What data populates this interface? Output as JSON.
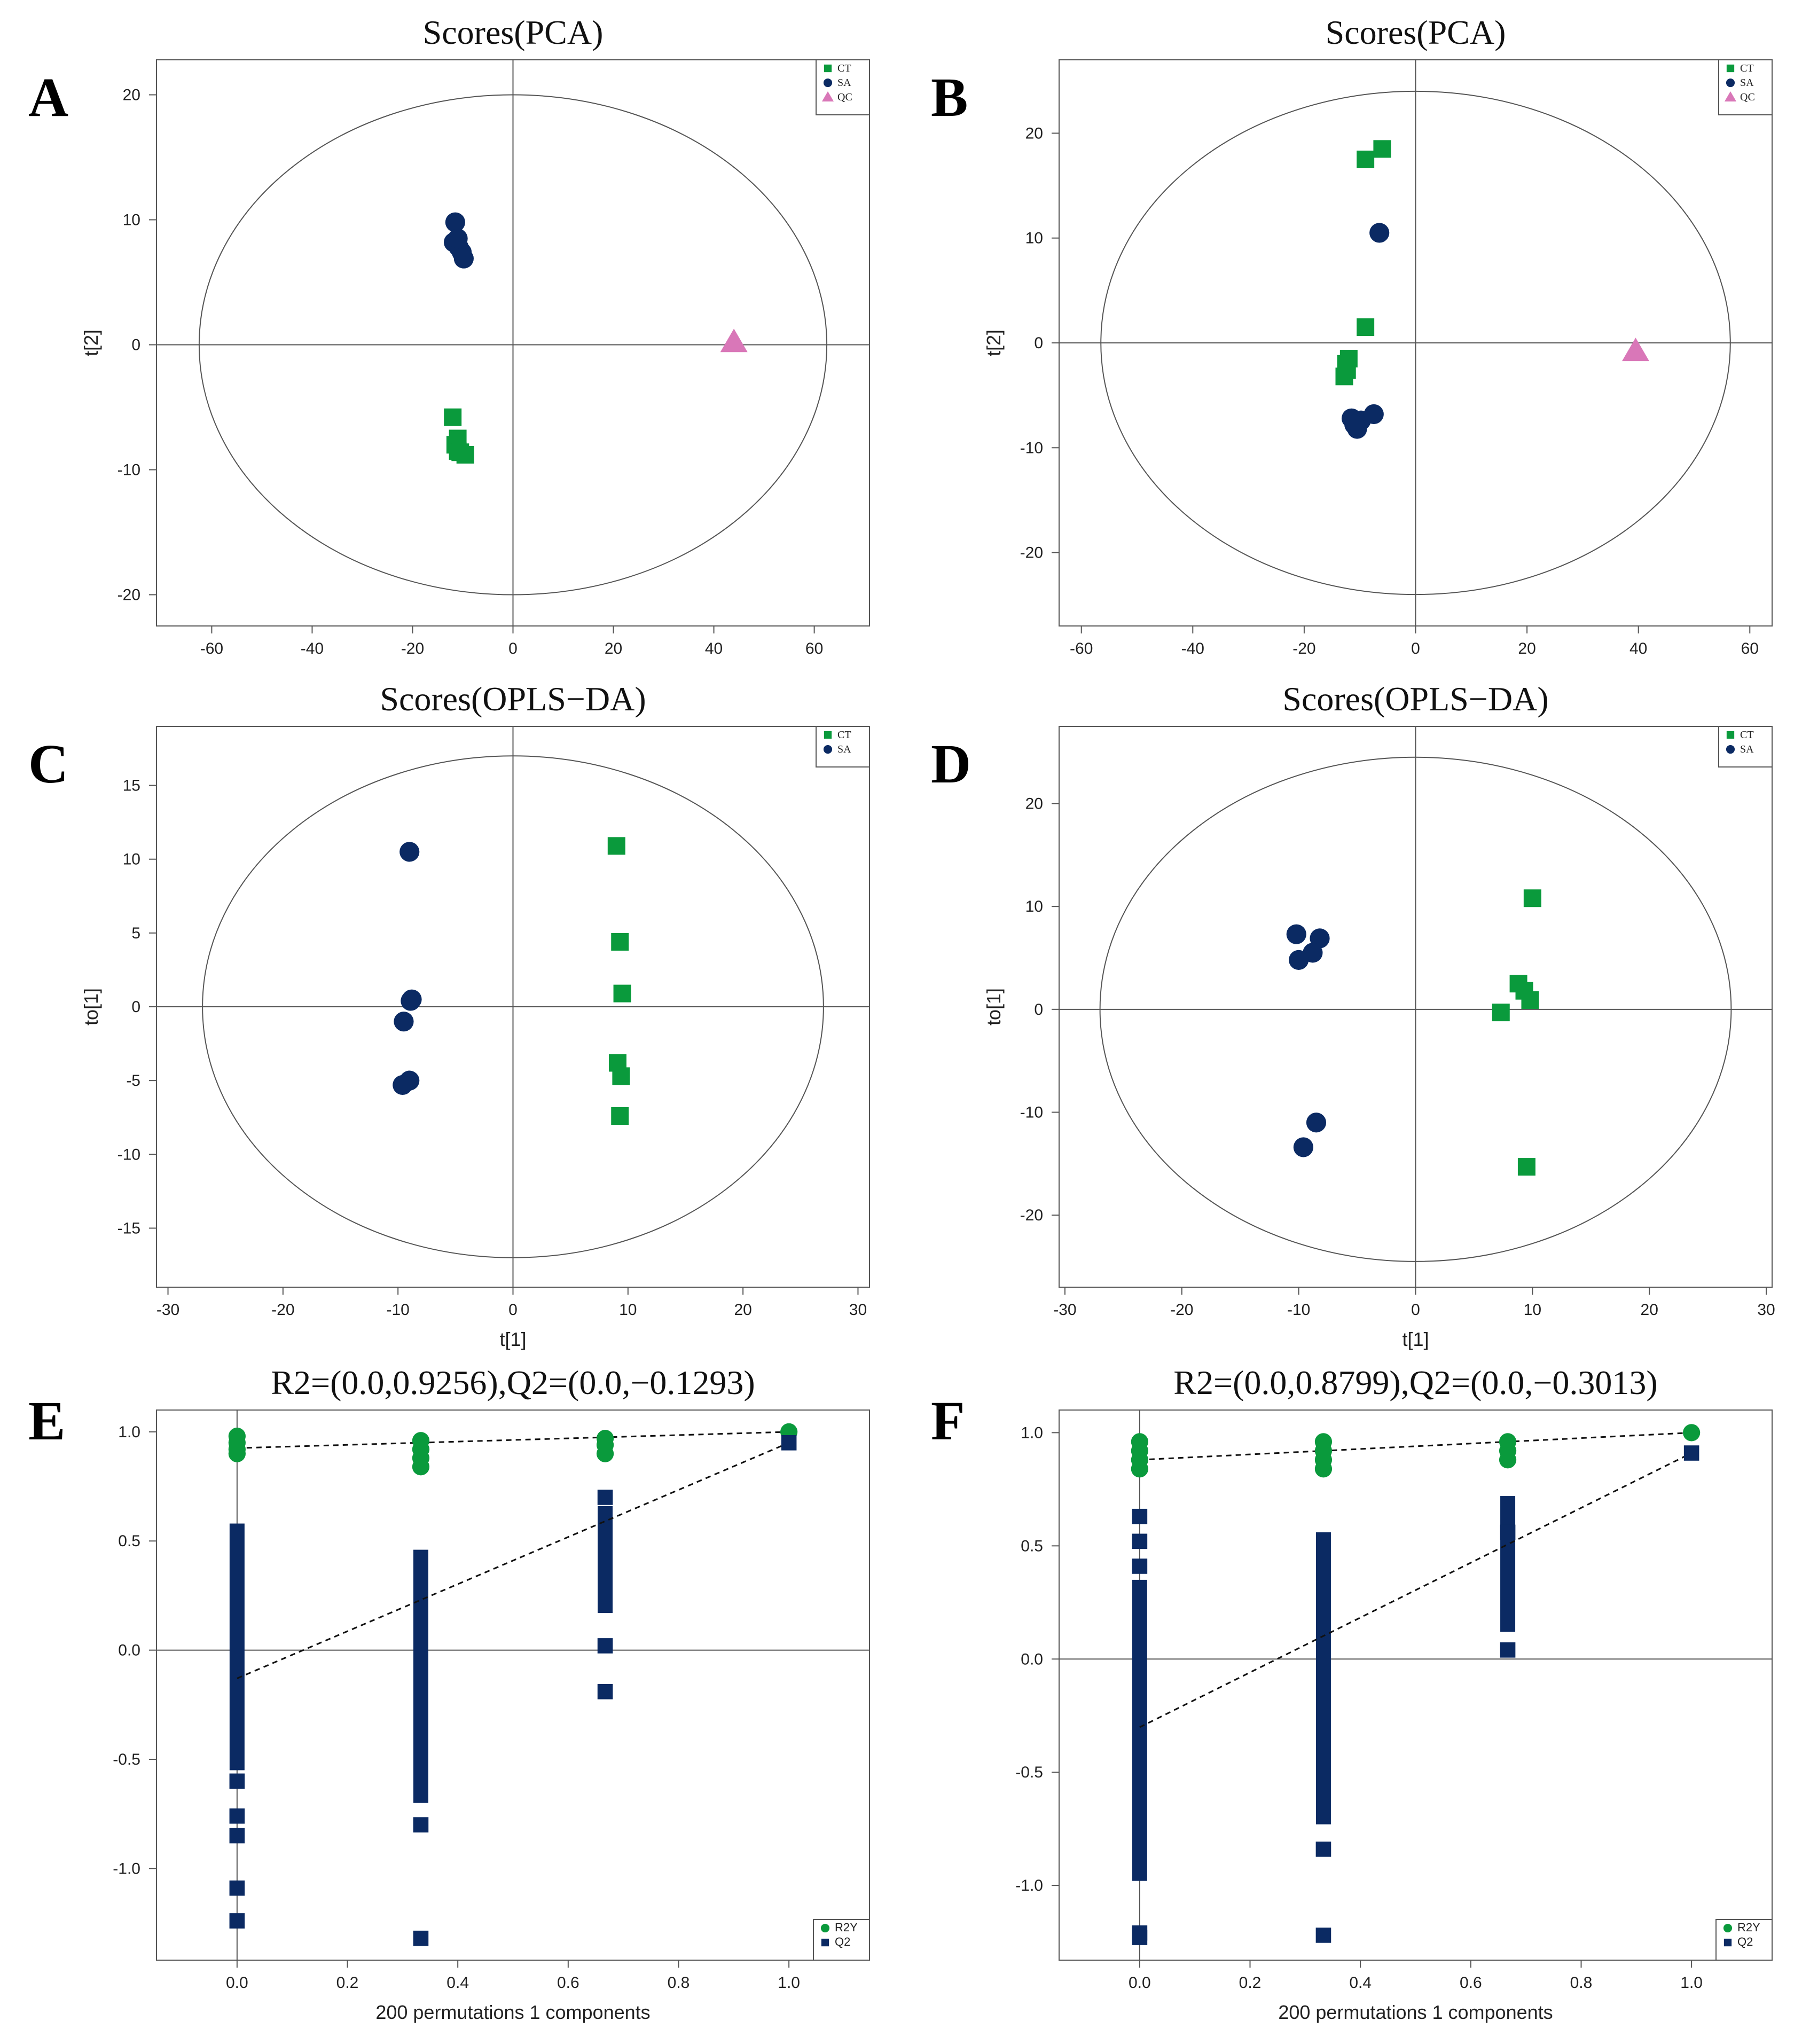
{
  "colors": {
    "CT": "#0a9a3c",
    "SA": "#0b2a63",
    "QC": "#d977b8",
    "R2Y": "#0a9a3c",
    "Q2": "#0b2a63"
  },
  "chart_data": [
    {
      "panel": "A",
      "type": "scatter",
      "title": "Scores(PCA)",
      "xlabel": "",
      "ylabel": "t[2]",
      "xlim": [
        -71,
        71
      ],
      "ylim": [
        -22.5,
        22.8
      ],
      "xticks": [
        -60,
        -40,
        -20,
        0,
        20,
        40,
        60
      ],
      "yticks": [
        -20,
        -10,
        0,
        10,
        20
      ],
      "ellipse": {
        "rx": 62.5,
        "ry": 20
      },
      "legend": "top-right",
      "series": [
        {
          "name": "CT",
          "marker": "square",
          "points": [
            [
              -12,
              -5.8
            ],
            [
              -11,
              -7.5
            ],
            [
              -11,
              -8.5
            ],
            [
              -9.5,
              -8.8
            ],
            [
              -11.5,
              -8
            ],
            [
              -10.5,
              -8.6
            ]
          ]
        },
        {
          "name": "SA",
          "marker": "circle",
          "points": [
            [
              -11.5,
              9.8
            ],
            [
              -11.8,
              8.2
            ],
            [
              -10.8,
              7.8
            ],
            [
              -10.2,
              7.4
            ],
            [
              -9.8,
              6.9
            ],
            [
              -11,
              8.5
            ]
          ]
        },
        {
          "name": "QC",
          "marker": "triangle",
          "points": [
            [
              44,
              0.2
            ]
          ]
        }
      ]
    },
    {
      "panel": "B",
      "type": "scatter",
      "title": "Scores(PCA)",
      "xlabel": "",
      "ylabel": "t[2]",
      "xlim": [
        -64,
        64
      ],
      "ylim": [
        -27,
        27
      ],
      "xticks": [
        -60,
        -40,
        -20,
        0,
        20,
        40,
        60
      ],
      "yticks": [
        -20,
        -10,
        0,
        10,
        20
      ],
      "ellipse": {
        "rx": 56.5,
        "ry": 24
      },
      "legend": "top-right",
      "series": [
        {
          "name": "CT",
          "marker": "square",
          "points": [
            [
              -6,
              18.5
            ],
            [
              -9,
              17.5
            ],
            [
              -9,
              1.5
            ],
            [
              -12.5,
              -2
            ],
            [
              -12,
              -1.5
            ],
            [
              -12.8,
              -3.2
            ],
            [
              -12.3,
              -2.6
            ]
          ]
        },
        {
          "name": "SA",
          "marker": "circle",
          "points": [
            [
              -6.5,
              10.5
            ],
            [
              -11.5,
              -7.2
            ],
            [
              -10.5,
              -8.2
            ],
            [
              -9.8,
              -7.4
            ],
            [
              -7.5,
              -6.8
            ],
            [
              -11,
              -7.8
            ]
          ]
        },
        {
          "name": "QC",
          "marker": "triangle",
          "points": [
            [
              39.5,
              -0.8
            ]
          ]
        }
      ]
    },
    {
      "panel": "C",
      "type": "scatter",
      "title": "Scores(OPLS−DA)",
      "xlabel": "t[1]",
      "ylabel": "to[1]",
      "xlim": [
        -31,
        31
      ],
      "ylim": [
        -19,
        19
      ],
      "xticks": [
        -30,
        -20,
        -10,
        0,
        10,
        20,
        30
      ],
      "yticks": [
        -15,
        -10,
        -5,
        0,
        5,
        10,
        15
      ],
      "ellipse": {
        "rx": 27,
        "ry": 17
      },
      "legend": "top-right",
      "series": [
        {
          "name": "CT",
          "marker": "square",
          "points": [
            [
              9,
              10.9
            ],
            [
              9.3,
              4.4
            ],
            [
              9.5,
              0.9
            ],
            [
              9.1,
              -3.8
            ],
            [
              9.4,
              -4.7
            ],
            [
              9.3,
              -7.4
            ]
          ]
        },
        {
          "name": "SA",
          "marker": "circle",
          "points": [
            [
              -9,
              10.5
            ],
            [
              -8.8,
              0.5
            ],
            [
              -9.5,
              -1
            ],
            [
              -9,
              -5
            ],
            [
              -9.6,
              -5.3
            ],
            [
              -8.9,
              0.4
            ]
          ]
        }
      ]
    },
    {
      "panel": "D",
      "type": "scatter",
      "title": "Scores(OPLS−DA)",
      "xlabel": "t[1]",
      "ylabel": "to[1]",
      "xlim": [
        -30.5,
        30.5
      ],
      "ylim": [
        -27,
        27.5
      ],
      "xticks": [
        -30,
        -20,
        -10,
        0,
        10,
        20,
        30
      ],
      "yticks": [
        -20,
        -10,
        0,
        10,
        20
      ],
      "ellipse": {
        "rx": 27,
        "ry": 24.5
      },
      "legend": "top-right",
      "series": [
        {
          "name": "CT",
          "marker": "square",
          "points": [
            [
              10,
              10.8
            ],
            [
              8.8,
              2.5
            ],
            [
              9.3,
              1.8
            ],
            [
              9.8,
              0.9
            ],
            [
              7.3,
              -0.3
            ],
            [
              9.5,
              -15.3
            ]
          ]
        },
        {
          "name": "SA",
          "marker": "circle",
          "points": [
            [
              -10.2,
              7.3
            ],
            [
              -8.2,
              6.9
            ],
            [
              -8.8,
              5.5
            ],
            [
              -10,
              4.8
            ],
            [
              -8.5,
              -11
            ],
            [
              -9.6,
              -13.4
            ]
          ]
        }
      ]
    },
    {
      "panel": "E",
      "type": "scatter",
      "title": "R2=(0.0,0.9256),Q2=(0.0,−0.1293)",
      "xlabel": "200 permutations 1 components",
      "ylabel": "",
      "xlim": [
        -0.146,
        1.146
      ],
      "ylim": [
        -1.42,
        1.1
      ],
      "xticks": [
        0.0,
        0.2,
        0.4,
        0.6,
        0.8,
        1.0
      ],
      "yticks": [
        -1.0,
        -0.5,
        0.0,
        0.5,
        1.0
      ],
      "legend": "bottom-right",
      "series": [
        {
          "name": "R2Y",
          "marker": "circle",
          "points": [
            [
              0,
              0.98
            ],
            [
              0,
              0.95
            ],
            [
              0,
              0.92
            ],
            [
              0,
              0.9
            ],
            [
              0.333,
              0.96
            ],
            [
              0.333,
              0.92
            ],
            [
              0.333,
              0.88
            ],
            [
              0.333,
              0.84
            ],
            [
              0.667,
              0.97
            ],
            [
              0.667,
              0.94
            ],
            [
              0.667,
              0.9
            ],
            [
              1.0,
              1.0
            ]
          ]
        },
        {
          "name": "Q2",
          "marker": "square",
          "points": [
            [
              1.0,
              0.95
            ],
            [
              0.667,
              0.7
            ],
            [
              0.667,
              0.02
            ],
            [
              0.667,
              -0.19
            ],
            [
              0,
              -0.6
            ],
            [
              0,
              -0.76
            ],
            [
              0,
              -0.85
            ],
            [
              0,
              -1.09
            ],
            [
              0,
              -1.24
            ],
            [
              0.333,
              -0.8
            ],
            [
              0.333,
              -1.32
            ]
          ]
        }
      ],
      "ranges": [
        {
          "x": 0,
          "from": -0.55,
          "to": 0.58
        },
        {
          "x": 0.333,
          "from": -0.7,
          "to": 0.46
        },
        {
          "x": 0.667,
          "from": 0.17,
          "to": 0.66
        }
      ],
      "regression": [
        {
          "name": "R2Y",
          "from": [
            0,
            0.9256
          ],
          "to": [
            1.0,
            1.0
          ]
        },
        {
          "name": "Q2",
          "from": [
            0,
            -0.1293
          ],
          "to": [
            1.0,
            0.95
          ]
        }
      ]
    },
    {
      "panel": "F",
      "type": "scatter",
      "title": "R2=(0.0,0.8799),Q2=(0.0,−0.3013)",
      "xlabel": "200 permutations 1 components",
      "ylabel": "",
      "xlim": [
        -0.146,
        1.146
      ],
      "ylim": [
        -1.33,
        1.1
      ],
      "xticks": [
        0.0,
        0.2,
        0.4,
        0.6,
        0.8,
        1.0
      ],
      "yticks": [
        -1.0,
        -0.5,
        0.0,
        0.5,
        1.0
      ],
      "legend": "bottom-right",
      "series": [
        {
          "name": "R2Y",
          "marker": "circle",
          "points": [
            [
              0,
              0.96
            ],
            [
              0,
              0.92
            ],
            [
              0,
              0.88
            ],
            [
              0,
              0.84
            ],
            [
              0.333,
              0.96
            ],
            [
              0.333,
              0.92
            ],
            [
              0.333,
              0.88
            ],
            [
              0.333,
              0.84
            ],
            [
              0.667,
              0.96
            ],
            [
              0.667,
              0.92
            ],
            [
              0.667,
              0.88
            ],
            [
              1.0,
              1.0
            ]
          ]
        },
        {
          "name": "Q2",
          "marker": "square",
          "points": [
            [
              1.0,
              0.91
            ],
            [
              0,
              0.63
            ],
            [
              0,
              0.52
            ],
            [
              0,
              0.41
            ],
            [
              0,
              -1.21
            ],
            [
              0,
              -1.23
            ],
            [
              0.333,
              -0.84
            ],
            [
              0.333,
              -1.22
            ],
            [
              0.667,
              0.56
            ],
            [
              0.667,
              0.04
            ]
          ]
        }
      ],
      "ranges": [
        {
          "x": 0,
          "from": -0.98,
          "to": 0.35
        },
        {
          "x": 0.333,
          "from": -0.73,
          "to": 0.56
        },
        {
          "x": 0.667,
          "from": 0.12,
          "to": 0.72
        }
      ],
      "regression": [
        {
          "name": "R2Y",
          "from": [
            0,
            0.8799
          ],
          "to": [
            1.0,
            1.0
          ]
        },
        {
          "name": "Q2",
          "from": [
            0,
            -0.3013
          ],
          "to": [
            1.0,
            0.91
          ]
        }
      ]
    }
  ]
}
